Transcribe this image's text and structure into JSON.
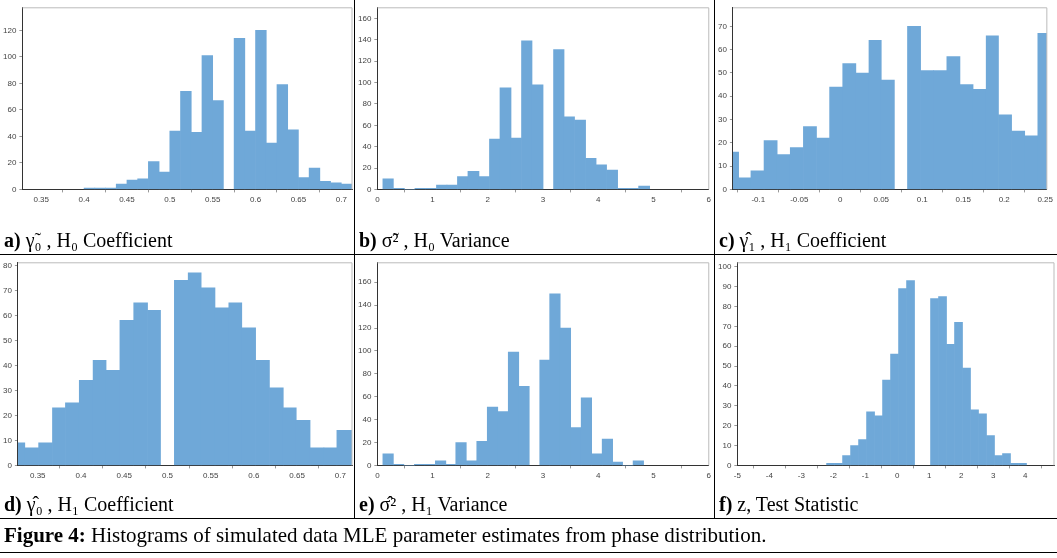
{
  "chart_data": [
    {
      "type": "histogram",
      "title": "a) γ̃₀ , H₀ Coefficient",
      "color": "#6fa8d8",
      "xlim": [
        0.328,
        0.7125
      ],
      "xticks": [
        0.35,
        0.4,
        0.45,
        0.5,
        0.55,
        0.6,
        0.65,
        0.7
      ],
      "ylim": [
        0,
        137
      ],
      "yticks": [
        0,
        20,
        40,
        60,
        80,
        100,
        120
      ],
      "bins": [
        0.4,
        0.4125,
        0.425,
        0.4375,
        0.45,
        0.4625,
        0.475,
        0.4875,
        0.5,
        0.5125,
        0.525,
        0.5375,
        0.55,
        0.5625,
        0.575,
        0.5875,
        0.6,
        0.6125,
        0.625,
        0.6375,
        0.65,
        0.6625,
        0.675,
        0.6875,
        0.7,
        0.7125
      ],
      "values": [
        1,
        1,
        1,
        4,
        7,
        8,
        21,
        13,
        44,
        74,
        43,
        101,
        67,
        null,
        114,
        44,
        120,
        35,
        79,
        45,
        9,
        16,
        6,
        5,
        4
      ]
    },
    {
      "type": "histogram",
      "title": "b) σ̃² , H₀ Variance",
      "color": "#6fa8d8",
      "xlim": [
        0,
        6
      ],
      "xticks": [
        0,
        1,
        2,
        3,
        4,
        5,
        6
      ],
      "ylim": [
        0,
        170
      ],
      "yticks": [
        0,
        20,
        40,
        60,
        80,
        100,
        120,
        140,
        160
      ],
      "bins": [
        0.1,
        0.29,
        0.49,
        0.68,
        0.87,
        1.07,
        1.26,
        1.45,
        1.64,
        1.84,
        2.03,
        2.22,
        2.42,
        2.61,
        2.8,
        3.0,
        3.19,
        3.38,
        3.57,
        3.77,
        3.96,
        4.15,
        4.35,
        4.54,
        4.73,
        4.93
      ],
      "values": [
        10,
        1,
        0,
        1,
        1,
        4,
        4,
        12,
        17,
        12,
        47,
        95,
        48,
        139,
        98,
        null,
        131,
        68,
        65,
        29,
        23,
        18,
        1,
        1,
        3
      ]
    },
    {
      "type": "histogram",
      "title": "c) γ̂₁ , H₁ Coefficient",
      "color": "#6fa8d8",
      "xlim": [
        -0.131,
        0.252
      ],
      "xticks": [
        -0.1,
        -0.05,
        0,
        0.05,
        0.1,
        0.15,
        0.2,
        0.25
      ],
      "ylim": [
        0,
        78
      ],
      "yticks": [
        0,
        10,
        20,
        30,
        40,
        50,
        60,
        70
      ],
      "bins": [
        -0.131,
        -0.124,
        -0.109,
        -0.093,
        -0.077,
        -0.061,
        -0.045,
        -0.029,
        -0.013,
        0.003,
        0.019,
        0.035,
        0.05,
        0.066,
        0.082,
        0.098,
        0.114,
        0.13,
        0.146,
        0.162,
        0.178,
        0.193,
        0.209,
        0.225,
        0.241,
        0.252
      ],
      "values": [
        16,
        5,
        8,
        21,
        15,
        18,
        27,
        22,
        44,
        54,
        50,
        64,
        47,
        null,
        70,
        51,
        51,
        57,
        45,
        43,
        66,
        32,
        25,
        23,
        67
      ]
    },
    {
      "type": "histogram",
      "title": "d) γ̂₀ , H₁ Coefficient",
      "color": "#6fa8d8",
      "xlim": [
        0.327,
        0.7135
      ],
      "xticks": [
        0.35,
        0.4,
        0.45,
        0.5,
        0.55,
        0.6,
        0.65,
        0.7
      ],
      "ylim": [
        0,
        81
      ],
      "yticks": [
        0,
        10,
        20,
        30,
        40,
        50,
        60,
        70,
        80
      ],
      "bins": [
        0.327,
        0.335,
        0.351,
        0.367,
        0.382,
        0.398,
        0.414,
        0.429,
        0.445,
        0.461,
        0.477,
        0.492,
        0.508,
        0.524,
        0.539,
        0.555,
        0.571,
        0.586,
        0.602,
        0.618,
        0.634,
        0.649,
        0.665,
        0.681,
        0.696,
        0.7135
      ],
      "values": [
        9,
        7,
        9,
        23,
        25,
        34,
        42,
        38,
        58,
        65,
        62,
        null,
        74,
        77,
        71,
        63,
        65,
        55,
        42,
        31,
        23,
        18,
        7,
        7,
        14
      ]
    },
    {
      "type": "histogram",
      "title": "e) σ̂² , H₁ Variance",
      "color": "#6fa8d8",
      "xlim": [
        0,
        6
      ],
      "xticks": [
        0,
        1,
        2,
        3,
        4,
        5,
        6
      ],
      "ylim": [
        0,
        177
      ],
      "yticks": [
        0,
        20,
        40,
        60,
        80,
        100,
        120,
        140,
        160
      ],
      "bins": [
        0.1,
        0.29,
        0.48,
        0.67,
        0.86,
        1.05,
        1.24,
        1.42,
        1.61,
        1.8,
        1.99,
        2.18,
        2.37,
        2.56,
        2.75,
        2.94,
        3.12,
        3.31,
        3.5,
        3.69,
        3.88,
        4.07,
        4.26,
        4.44,
        4.63,
        4.82
      ],
      "values": [
        10,
        1,
        0,
        1,
        1,
        4,
        1,
        20,
        4,
        21,
        51,
        47,
        99,
        69,
        null,
        92,
        150,
        120,
        33,
        59,
        10,
        23,
        3,
        0,
        4
      ]
    },
    {
      "type": "histogram",
      "title": "f) z, Test Statistic",
      "color": "#6fa8d8",
      "xlim": [
        -5,
        4.9
      ],
      "xticks": [
        -5,
        -4,
        -3,
        -2,
        -1,
        0,
        1,
        2,
        3,
        4
      ],
      "ylim": [
        0,
        102
      ],
      "yticks": [
        0,
        10,
        20,
        30,
        40,
        50,
        60,
        70,
        80,
        90,
        100
      ],
      "bins": [
        -2.21,
        -1.96,
        -1.71,
        -1.46,
        -1.21,
        -0.96,
        -0.71,
        -0.46,
        -0.21,
        0.04,
        0.29,
        0.54,
        0.79,
        1.04,
        1.29,
        1.54,
        1.79,
        2.04,
        2.29,
        2.54,
        2.79,
        3.04,
        3.29,
        3.54,
        3.79,
        4.04
      ],
      "values": [
        1,
        1,
        5,
        10,
        13,
        27,
        25,
        43,
        56,
        89,
        93,
        null,
        null,
        84,
        85,
        61,
        72,
        49,
        28,
        26,
        15,
        5,
        6,
        1,
        1
      ],
      "annotations": [
        "Figure 4: Histograms of simulated data MLE parameter estimates from phase distribution."
      ]
    }
  ]
}
